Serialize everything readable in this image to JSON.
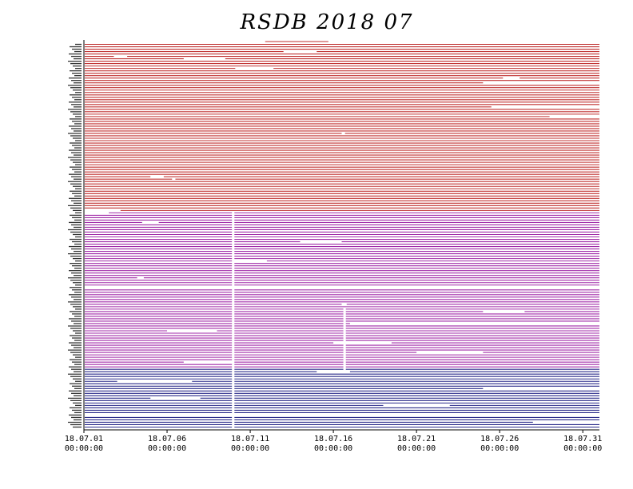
{
  "chart_data": {
    "type": "timeline",
    "title": "RSDB 2018 07",
    "x_ticks": [
      {
        "date": "18.07.01",
        "time": "00:00:00",
        "day": 0
      },
      {
        "date": "18.07.06",
        "time": "00:00:00",
        "day": 5
      },
      {
        "date": "18.07.11",
        "time": "00:00:00",
        "day": 10
      },
      {
        "date": "18.07.16",
        "time": "00:00:00",
        "day": 15
      },
      {
        "date": "18.07.21",
        "time": "00:00:00",
        "day": 20
      },
      {
        "date": "18.07.26",
        "time": "00:00:00",
        "day": 25
      },
      {
        "date": "18.07.31",
        "time": "00:00:00",
        "day": 30
      }
    ],
    "x_range_days": [
      0,
      31
    ],
    "groups": [
      {
        "color": "#c03030",
        "rows": 70
      },
      {
        "color": "#a02aa8",
        "rows": 65
      },
      {
        "color": "#2a2a8a",
        "rows": 25
      }
    ],
    "gaps": [
      {
        "row": 3,
        "from": 12.0,
        "to": 14.0
      },
      {
        "row": 5,
        "from": 1.8,
        "to": 2.6
      },
      {
        "row": 6,
        "from": 6.0,
        "to": 8.5
      },
      {
        "row": 10,
        "from": 9.1,
        "to": 11.4
      },
      {
        "row": 14,
        "from": 25.2,
        "to": 26.2
      },
      {
        "row": 16,
        "from": 24.0,
        "to": 31.0
      },
      {
        "row": 26,
        "from": 24.5,
        "to": 31.0
      },
      {
        "row": 30,
        "from": 28.0,
        "to": 31.0
      },
      {
        "row": 37,
        "from": 15.5,
        "to": 15.7
      },
      {
        "row": 55,
        "from": 4.0,
        "to": 4.8
      },
      {
        "row": 56,
        "from": 5.3,
        "to": 5.5
      },
      {
        "row": 69,
        "from": 0.0,
        "to": 2.2
      },
      {
        "row": 70,
        "from": 0.0,
        "to": 1.5
      },
      {
        "row": 74,
        "from": 3.5,
        "to": 4.5
      },
      {
        "row": 82,
        "from": 13.0,
        "to": 15.5
      },
      {
        "row": 90,
        "from": 9.0,
        "to": 11.0
      },
      {
        "row": 97,
        "from": 3.2,
        "to": 3.6
      },
      {
        "row": 101,
        "from": 0.0,
        "to": 31.0
      },
      {
        "row": 108,
        "from": 15.5,
        "to": 15.8
      },
      {
        "row": 111,
        "from": 24.0,
        "to": 26.5
      },
      {
        "row": 116,
        "from": 16.0,
        "to": 31.0
      },
      {
        "row": 119,
        "from": 5.0,
        "to": 8.0
      },
      {
        "row": 124,
        "from": 15.0,
        "to": 18.5
      },
      {
        "row": 128,
        "from": 20.0,
        "to": 24.0
      },
      {
        "row": 132,
        "from": 6.0,
        "to": 9.0
      },
      {
        "row": 136,
        "from": 14.0,
        "to": 16.0
      },
      {
        "row": 140,
        "from": 2.0,
        "to": 6.5
      },
      {
        "row": 143,
        "from": 24.0,
        "to": 31.0
      },
      {
        "row": 147,
        "from": 4.0,
        "to": 7.0
      },
      {
        "row": 150,
        "from": 18.0,
        "to": 22.0
      },
      {
        "row": 154,
        "from": 0.0,
        "to": 31.0
      },
      {
        "row": 157,
        "from": 27.0,
        "to": 31.0
      }
    ],
    "column_gaps": [
      {
        "from": 8.9,
        "to": 9.05,
        "from_row": 70,
        "to_row": 160
      },
      {
        "from": 15.6,
        "to": 15.75,
        "from_row": 110,
        "to_row": 135
      }
    ]
  }
}
